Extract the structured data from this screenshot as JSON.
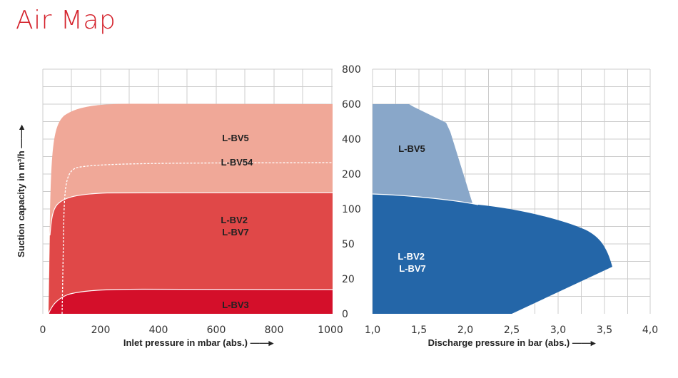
{
  "title": "Air Map",
  "chart_data": [
    {
      "type": "area",
      "xlabel": "Inlet pressure in mbar (abs.) ——▸",
      "ylabel": "Suction capacity  in m³/h ——▸",
      "x_ticks": [
        "0",
        "200",
        "400",
        "600",
        "800",
        "1000"
      ],
      "xlim": [
        0,
        1000
      ],
      "y_ticks": [
        "0",
        "20",
        "50",
        "100",
        "200",
        "400",
        "600",
        "800"
      ],
      "y_scale": "non-linear (labels 0,20,50,100,200,400,600,800 equally spaced)",
      "grid": true,
      "series": [
        {
          "name": "L-BV5",
          "color": "#f0a898",
          "x": [
            20,
            25,
            35,
            60,
            100,
            200,
            400,
            600,
            800,
            1000
          ],
          "y": [
            0,
            200,
            420,
            530,
            575,
            595,
            600,
            600,
            600,
            598
          ]
        },
        {
          "name": "L-BV54",
          "color": "#ffffff",
          "style": "dashed",
          "x": [
            65,
            70,
            80,
            100,
            200,
            400,
            600,
            800,
            1000
          ],
          "y": [
            0,
            100,
            175,
            195,
            215,
            225,
            228,
            230,
            230
          ]
        },
        {
          "name": "L-BV2\nL-BV7",
          "color": "#e04848",
          "x": [
            20,
            25,
            35,
            60,
            100,
            200,
            400,
            600,
            800,
            1000
          ],
          "y": [
            0,
            70,
            100,
            125,
            140,
            145,
            145,
            145,
            145,
            143
          ]
        },
        {
          "name": "L-BV3",
          "color": "#d40f2a",
          "x": [
            20,
            40,
            60,
            100,
            200,
            400,
            600,
            800,
            1000
          ],
          "y": [
            0,
            3,
            8,
            12,
            15,
            17,
            17,
            17,
            17
          ]
        }
      ]
    },
    {
      "type": "area",
      "xlabel": "Discharge pressure in bar (abs.) ——▸",
      "x_ticks": [
        "1,0",
        "1,5",
        "2,0",
        "2,5",
        "3,0",
        "3,5",
        "4,0"
      ],
      "xlim": [
        1.0,
        4.0
      ],
      "grid": true,
      "series": [
        {
          "name": "L-BV5",
          "color": "#89a7c9",
          "x": [
            1.0,
            1.4,
            1.82,
            1.9,
            2.08
          ],
          "y": [
            600,
            590,
            480,
            300,
            107
          ]
        },
        {
          "name": "L-BV2\nL-BV7",
          "color": "#2466a8",
          "x": [
            1.0,
            1.5,
            2.0,
            2.5,
            3.0,
            3.4,
            3.55,
            3.6,
            2.5
          ],
          "y": [
            145,
            135,
            115,
            100,
            80,
            55,
            40,
            25,
            0
          ]
        }
      ]
    }
  ]
}
